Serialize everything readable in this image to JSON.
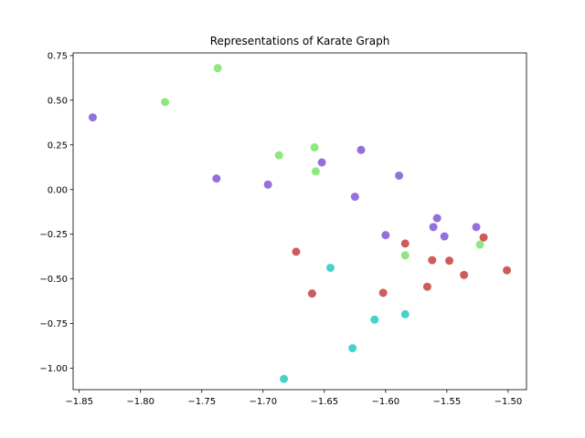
{
  "chart_data": {
    "type": "scatter",
    "title": "Representations of Karate Graph",
    "xlabel": "",
    "ylabel": "",
    "xlim": [
      -1.855,
      -1.485
    ],
    "ylim": [
      -1.12,
      0.765
    ],
    "xticks": [
      -1.85,
      -1.8,
      -1.75,
      -1.7,
      -1.65,
      -1.6,
      -1.55,
      -1.5
    ],
    "xtick_labels": [
      "−1.85",
      "−1.80",
      "−1.75",
      "−1.70",
      "−1.65",
      "−1.60",
      "−1.55",
      "−1.50"
    ],
    "yticks": [
      0.75,
      0.5,
      0.25,
      0.0,
      -0.25,
      -0.5,
      -0.75,
      -1.0
    ],
    "ytick_labels": [
      "0.75",
      "0.50",
      "0.25",
      "0.00",
      "−0.25",
      "−0.50",
      "−0.75",
      "−1.00"
    ],
    "grid": false,
    "legend": false,
    "groups": [
      {
        "color": "#9370db",
        "points": [
          [
            -1.839,
            0.404
          ],
          [
            -1.738,
            0.062
          ],
          [
            -1.696,
            0.028
          ],
          [
            -1.652,
            0.152
          ],
          [
            -1.625,
            -0.04
          ],
          [
            -1.62,
            0.222
          ],
          [
            -1.589,
            0.078
          ],
          [
            -1.6,
            -0.255
          ],
          [
            -1.561,
            -0.21
          ],
          [
            -1.558,
            -0.16
          ],
          [
            -1.552,
            -0.262
          ],
          [
            -1.526,
            -0.21
          ]
        ]
      },
      {
        "color": "#8ee87e",
        "points": [
          [
            -1.78,
            0.49
          ],
          [
            -1.737,
            0.68
          ],
          [
            -1.687,
            0.192
          ],
          [
            -1.658,
            0.236
          ],
          [
            -1.657,
            0.102
          ],
          [
            -1.584,
            -0.368
          ],
          [
            -1.523,
            -0.308
          ]
        ]
      },
      {
        "color": "#cd5c5c",
        "points": [
          [
            -1.673,
            -0.348
          ],
          [
            -1.66,
            -0.582
          ],
          [
            -1.602,
            -0.578
          ],
          [
            -1.584,
            -0.302
          ],
          [
            -1.566,
            -0.544
          ],
          [
            -1.562,
            -0.395
          ],
          [
            -1.548,
            -0.398
          ],
          [
            -1.536,
            -0.478
          ],
          [
            -1.52,
            -0.268
          ],
          [
            -1.501,
            -0.452
          ]
        ]
      },
      {
        "color": "#48d1cc",
        "points": [
          [
            -1.645,
            -0.438
          ],
          [
            -1.609,
            -0.728
          ],
          [
            -1.584,
            -0.698
          ],
          [
            -1.627,
            -0.888
          ],
          [
            -1.683,
            -1.06
          ]
        ]
      }
    ]
  }
}
